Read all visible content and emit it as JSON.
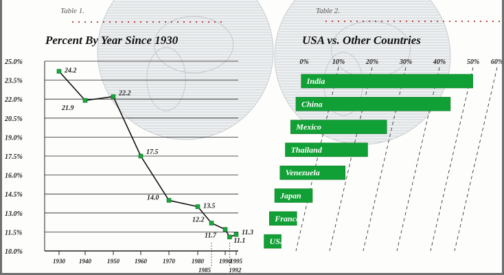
{
  "left_caption": "Table 1.",
  "right_caption": "Table 2.",
  "chart_data": [
    {
      "type": "line",
      "title": "Percent By Year Since 1930",
      "ylim": [
        10.0,
        25.0
      ],
      "y_ticks": [
        "25.0%",
        "23.5%",
        "22.0%",
        "20.5%",
        "19.0%",
        "17.5%",
        "16.0%",
        "14.5%",
        "13.0%",
        "11.5%",
        "10.0%"
      ],
      "x_ticks": [
        "1930",
        "1940",
        "1950",
        "1960",
        "1970",
        "1980",
        "1990",
        "1995"
      ],
      "x_ticks_lower": [
        "1985",
        "1992"
      ],
      "grid": true,
      "series": [
        {
          "x": [
            1930,
            1940,
            1950,
            1960,
            1970,
            1980,
            1985,
            1990,
            1992,
            1995
          ],
          "y": [
            24.2,
            21.9,
            22.2,
            17.5,
            14.0,
            13.5,
            12.2,
            11.7,
            11.1,
            11.3
          ],
          "labels": [
            "24.2",
            "21.9",
            "22.2",
            "17.5",
            "14.0",
            "13.5",
            "12.2",
            "11.7",
            "11.1",
            "11.3"
          ]
        }
      ]
    },
    {
      "type": "bar",
      "orientation": "horizontal",
      "title": "USA vs. Other Countries",
      "x_ticks": [
        "0%",
        "10%",
        "20%",
        "30%",
        "40%",
        "50%",
        "60%"
      ],
      "xlim": [
        0,
        60
      ],
      "categories": [
        "India",
        "China",
        "Mexico",
        "Thailand",
        "Venezuela",
        "Japan",
        "France",
        "USA"
      ],
      "values": [
        50,
        45,
        28,
        24,
        19,
        11,
        8,
        5
      ],
      "bar_color": "#11a035"
    }
  ]
}
